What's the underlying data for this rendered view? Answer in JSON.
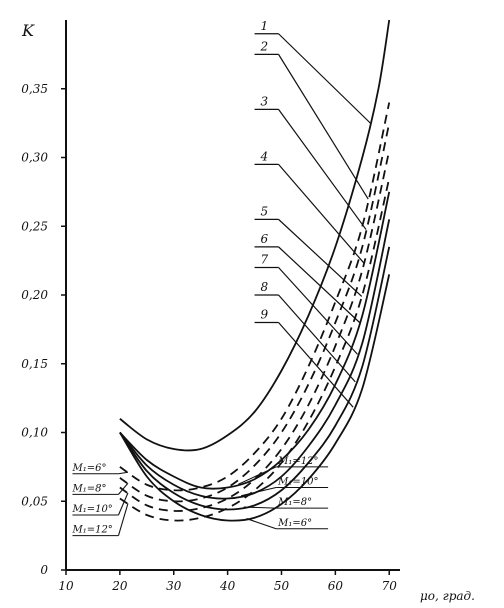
{
  "chart_data": {
    "type": "line",
    "ylabel": "K",
    "xlabel": "μo, град.",
    "xlim": [
      10,
      72
    ],
    "ylim": [
      0,
      0.4
    ],
    "x_ticks": [
      "10",
      "20",
      "30",
      "40",
      "50",
      "60",
      "70"
    ],
    "y_ticks": [
      {
        "value": 0,
        "label": "0"
      },
      {
        "value": 0.05,
        "label": "0,05"
      },
      {
        "value": 0.1,
        "label": "0,10"
      },
      {
        "value": 0.15,
        "label": "0,15"
      },
      {
        "value": 0.2,
        "label": "0,20"
      },
      {
        "value": 0.25,
        "label": "0,25"
      },
      {
        "value": 0.3,
        "label": "0,30"
      },
      {
        "value": 0.35,
        "label": "0,35"
      }
    ],
    "grid": false,
    "series": [
      {
        "name": "1",
        "style": "solid",
        "x": [
          20,
          25,
          30,
          35,
          40,
          45,
          50,
          55,
          60,
          65,
          68,
          70
        ],
        "y": [
          0.11,
          0.095,
          0.088,
          0.088,
          0.098,
          0.115,
          0.145,
          0.185,
          0.235,
          0.3,
          0.35,
          0.4
        ]
      },
      {
        "name": "2",
        "style": "dashed",
        "x": [
          20,
          25,
          30,
          35,
          40,
          45,
          50,
          55,
          60,
          65,
          70
        ],
        "y": [
          0.075,
          0.062,
          0.058,
          0.06,
          0.068,
          0.085,
          0.11,
          0.148,
          0.195,
          0.25,
          0.34
        ]
      },
      {
        "name": "3",
        "style": "dashed",
        "x": [
          20,
          25,
          30,
          35,
          40,
          45,
          50,
          55,
          60,
          65,
          70
        ],
        "y": [
          0.067,
          0.054,
          0.05,
          0.052,
          0.06,
          0.076,
          0.1,
          0.135,
          0.18,
          0.235,
          0.325
        ]
      },
      {
        "name": "4",
        "style": "dashed",
        "x": [
          20,
          25,
          30,
          35,
          40,
          45,
          50,
          55,
          60,
          65,
          70
        ],
        "y": [
          0.06,
          0.047,
          0.043,
          0.045,
          0.052,
          0.066,
          0.088,
          0.12,
          0.163,
          0.218,
          0.305
        ]
      },
      {
        "name": "5",
        "style": "dashed",
        "x": [
          20,
          25,
          30,
          35,
          40,
          45,
          50,
          55,
          60,
          65,
          70
        ],
        "y": [
          0.052,
          0.04,
          0.036,
          0.038,
          0.045,
          0.058,
          0.078,
          0.108,
          0.148,
          0.2,
          0.285
        ]
      },
      {
        "name": "6",
        "style": "solid",
        "x": [
          20,
          25,
          30,
          35,
          40,
          45,
          50,
          55,
          60,
          65,
          70
        ],
        "y": [
          0.1,
          0.08,
          0.068,
          0.06,
          0.06,
          0.066,
          0.08,
          0.102,
          0.135,
          0.185,
          0.275
        ]
      },
      {
        "name": "7",
        "style": "solid",
        "x": [
          20,
          25,
          30,
          35,
          40,
          45,
          50,
          55,
          60,
          65,
          70
        ],
        "y": [
          0.1,
          0.076,
          0.062,
          0.054,
          0.052,
          0.056,
          0.068,
          0.09,
          0.12,
          0.165,
          0.255
        ]
      },
      {
        "name": "8",
        "style": "solid",
        "x": [
          20,
          25,
          30,
          35,
          40,
          45,
          50,
          55,
          60,
          65,
          70
        ],
        "y": [
          0.1,
          0.072,
          0.056,
          0.047,
          0.044,
          0.047,
          0.058,
          0.078,
          0.105,
          0.148,
          0.235
        ]
      },
      {
        "name": "9",
        "style": "solid",
        "x": [
          20,
          25,
          30,
          35,
          40,
          45,
          50,
          55,
          60,
          65,
          70
        ],
        "y": [
          0.1,
          0.068,
          0.05,
          0.04,
          0.036,
          0.038,
          0.048,
          0.066,
          0.092,
          0.132,
          0.215
        ]
      }
    ],
    "number_labels": [
      {
        "text": "1",
        "series": 0,
        "lx": 45,
        "ly": 0.39
      },
      {
        "text": "2",
        "series": 1,
        "lx": 45,
        "ly": 0.375
      },
      {
        "text": "3",
        "series": 2,
        "lx": 45,
        "ly": 0.335
      },
      {
        "text": "4",
        "series": 3,
        "lx": 45,
        "ly": 0.295
      },
      {
        "text": "5",
        "series": 4,
        "lx": 45,
        "ly": 0.255
      },
      {
        "text": "6",
        "series": 5,
        "lx": 45,
        "ly": 0.235
      },
      {
        "text": "7",
        "series": 6,
        "lx": 45,
        "ly": 0.22
      },
      {
        "text": "8",
        "series": 7,
        "lx": 45,
        "ly": 0.2
      },
      {
        "text": "9",
        "series": 8,
        "lx": 45,
        "ly": 0.18
      }
    ],
    "mach_right": [
      {
        "text": "M₁=12°",
        "series": 5,
        "y": 0.075
      },
      {
        "text": "M₁=10°",
        "series": 6,
        "y": 0.06
      },
      {
        "text": "M₁=8°",
        "series": 7,
        "y": 0.045
      },
      {
        "text": "M₁=6°",
        "series": 8,
        "y": 0.03
      }
    ],
    "mach_left": [
      {
        "text": "M₁=6°",
        "series": 1,
        "y": 0.07
      },
      {
        "text": "M₁=8°",
        "series": 2,
        "y": 0.055
      },
      {
        "text": "M₁=10°",
        "series": 3,
        "y": 0.04
      },
      {
        "text": "M₁=12°",
        "series": 4,
        "y": 0.025
      }
    ]
  }
}
